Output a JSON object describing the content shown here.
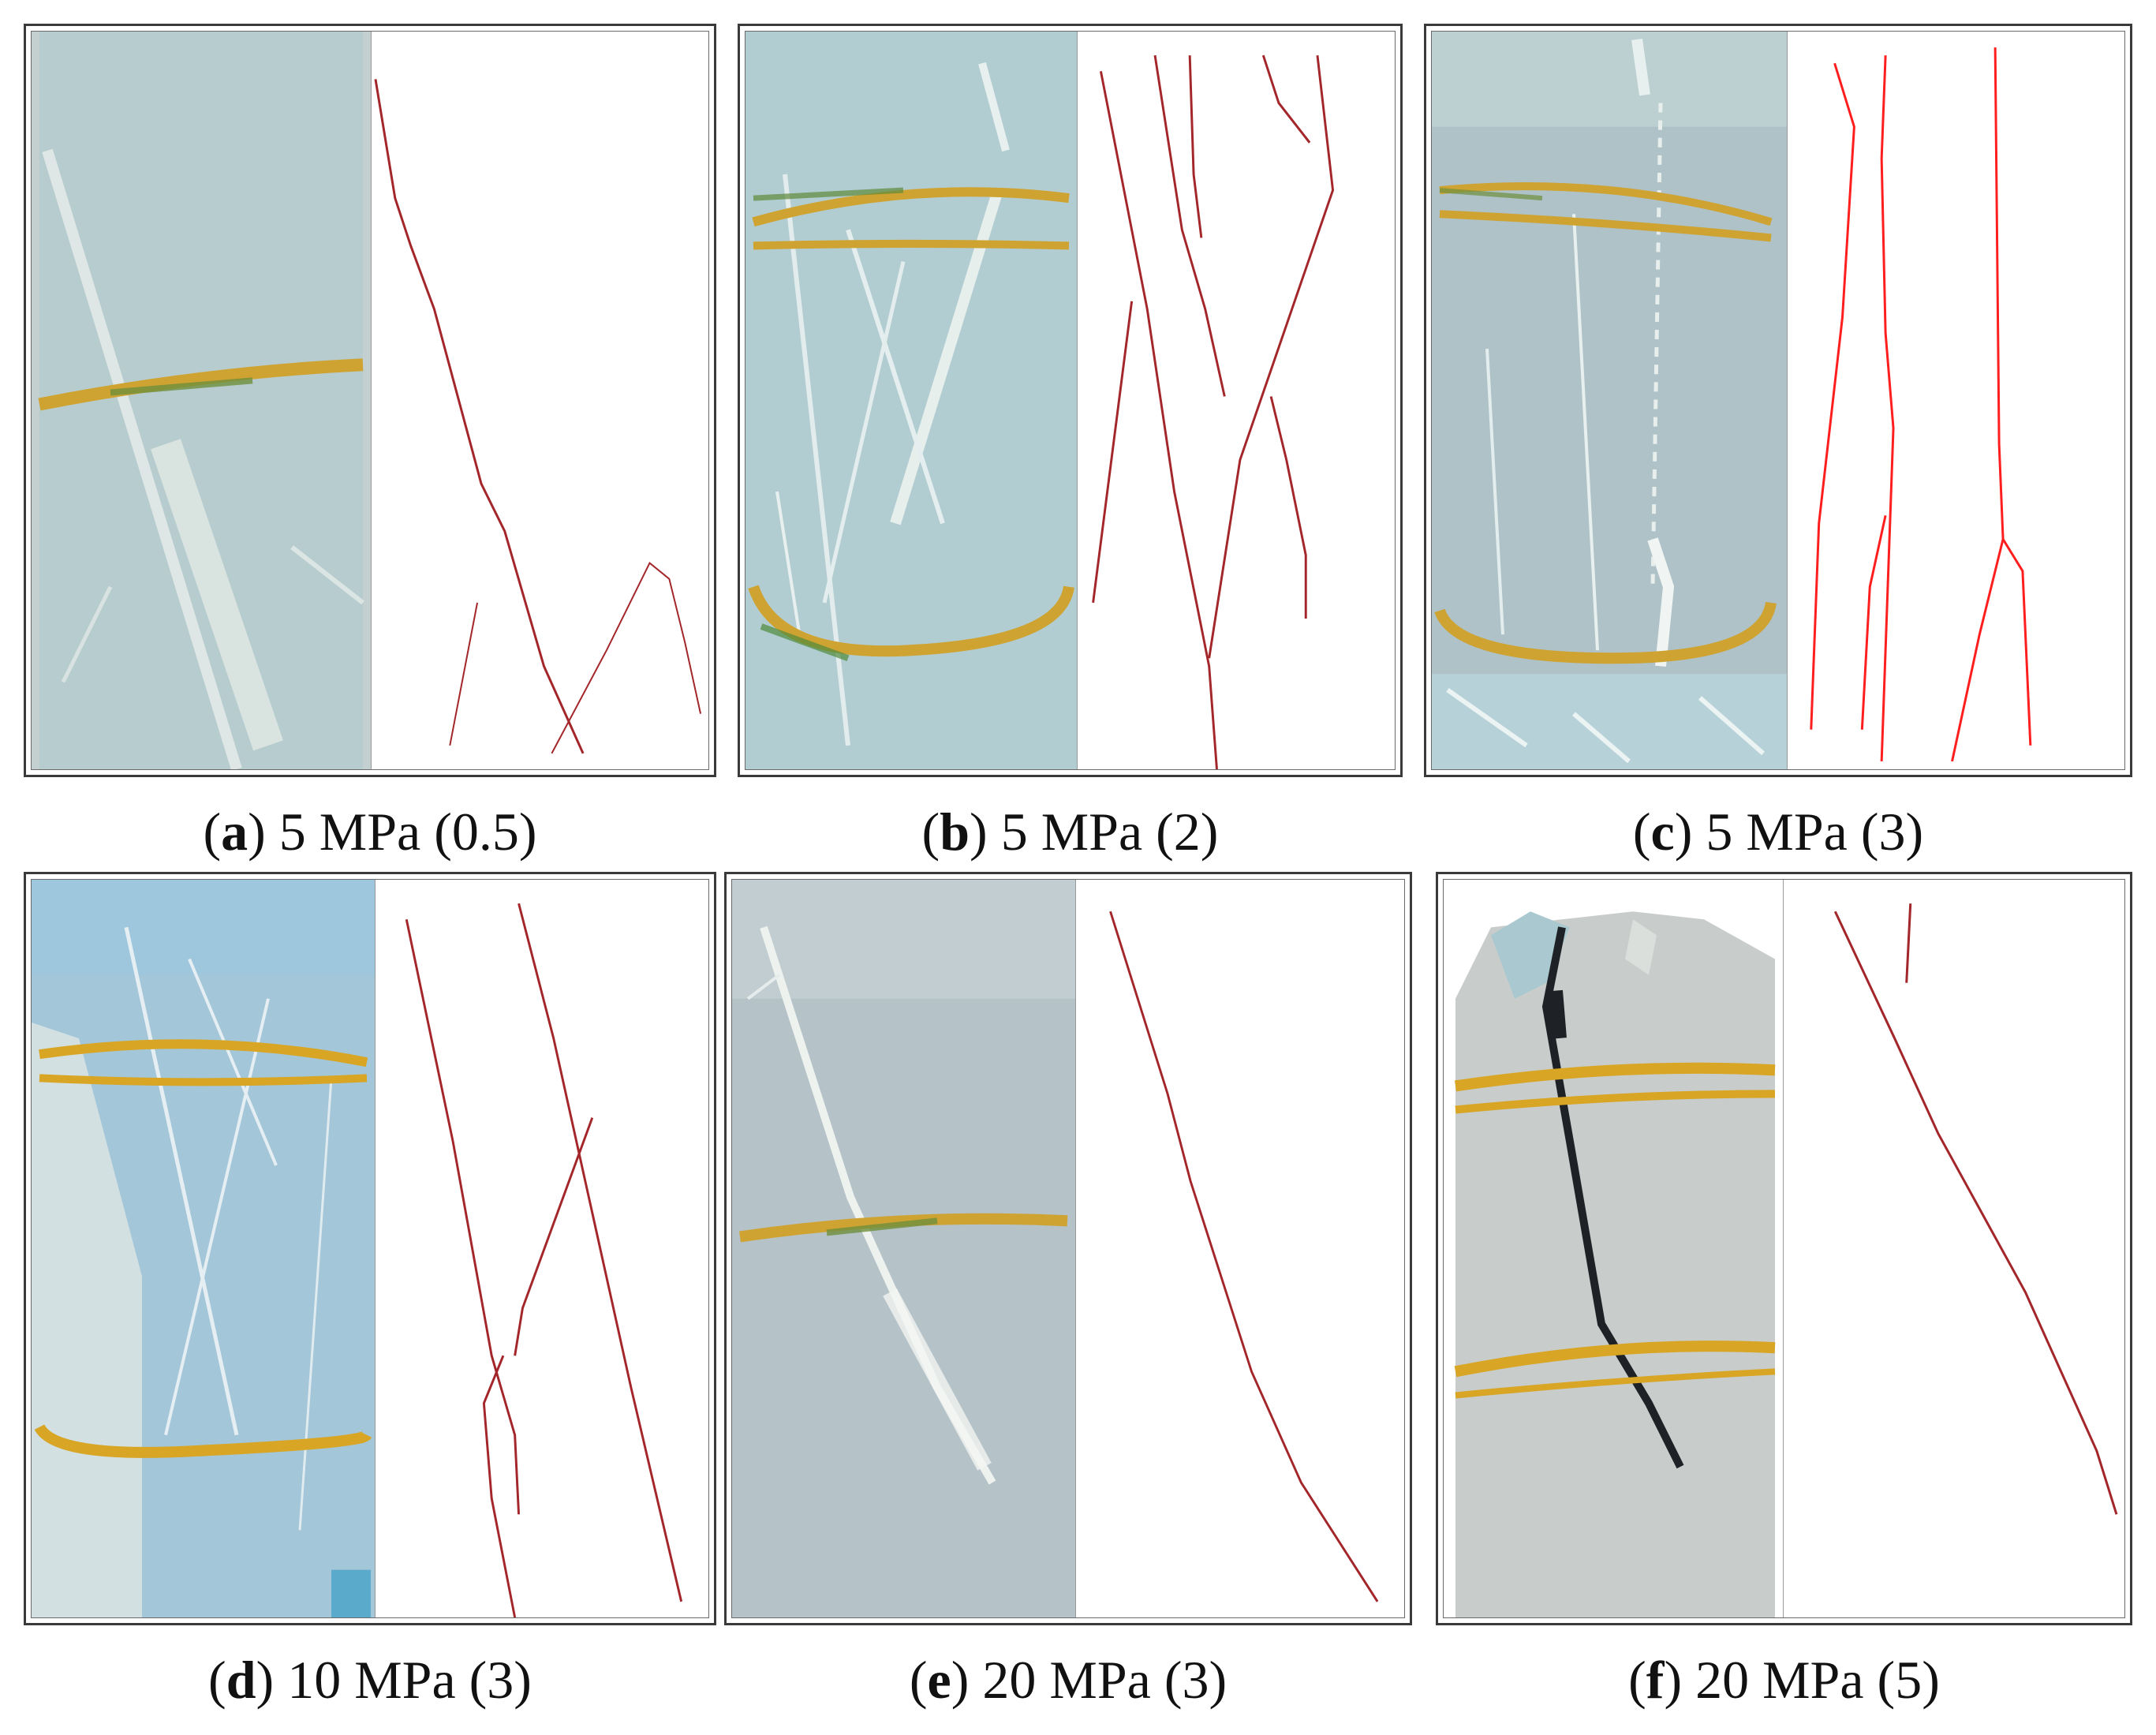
{
  "panels": [
    {
      "letter": "a",
      "rest": " 5 MPa (0.5)"
    },
    {
      "letter": "b",
      "rest": " 5 MPa (2)"
    },
    {
      "letter": "c",
      "rest": " 5 MPa (3)"
    },
    {
      "letter": "d",
      "rest": " 10 MPa (3)"
    },
    {
      "letter": "e",
      "rest": " 20 MPa (3)"
    },
    {
      "letter": "f",
      "rest": " 20 MPa (5)"
    }
  ],
  "colors": {
    "specimen": "#b9cfd0",
    "specimen_blue": "#a7cad8",
    "rubber_band": "#d8a524",
    "fracture_trace_dark": "#a3262a",
    "fracture_trace_red": "#ff1e1e",
    "open_fracture": "#1e2226"
  }
}
